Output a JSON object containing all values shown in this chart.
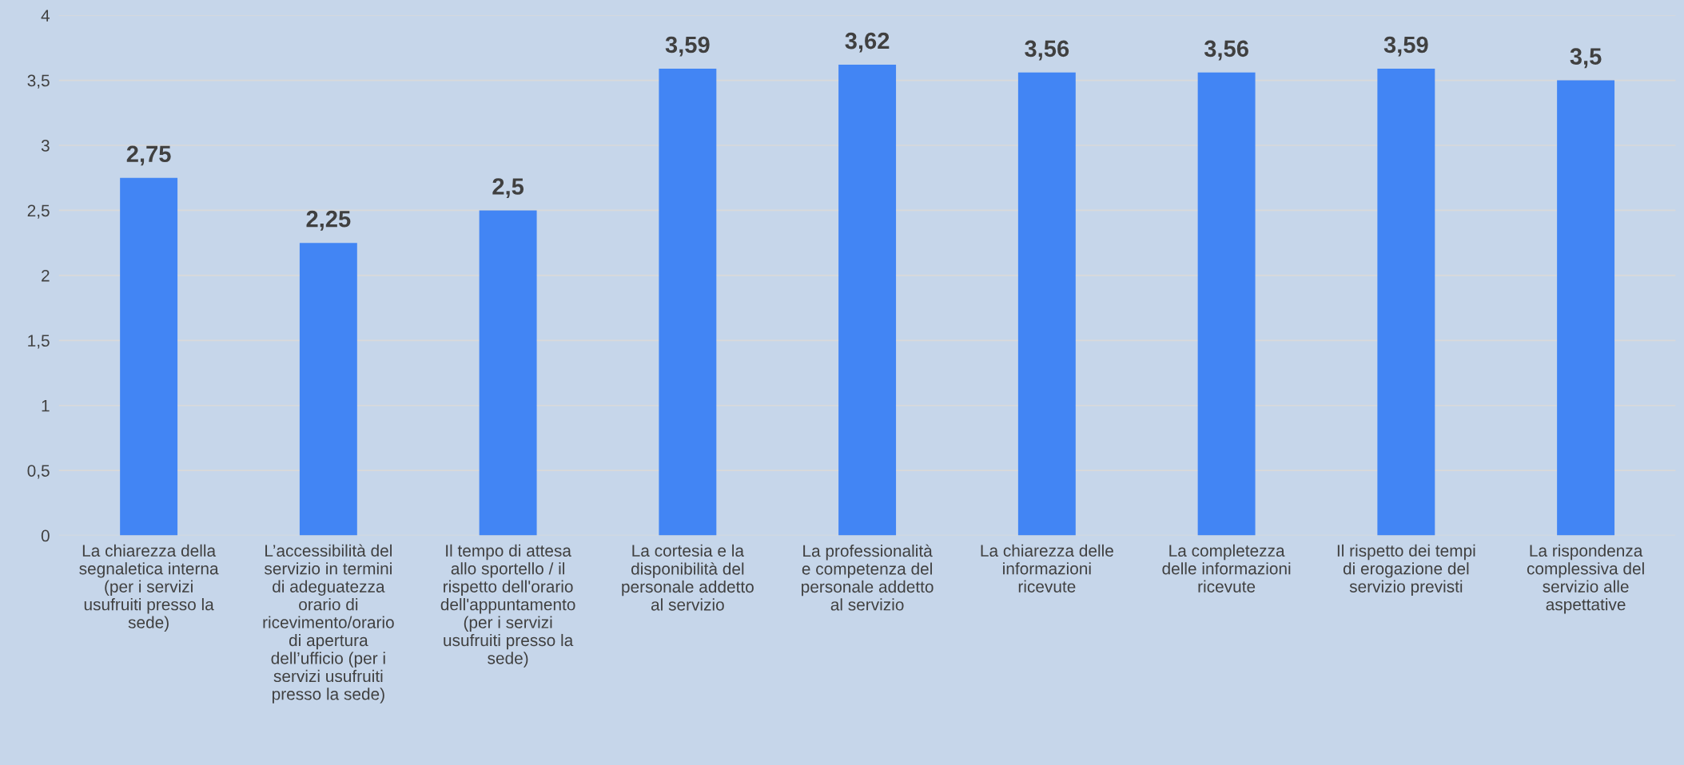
{
  "chart_data": {
    "type": "bar",
    "categories": [
      "La chiarezza della\nsegnaletica interna\n(per i servizi\nusufruiti presso la\nsede)",
      "L’accessibilità del\nservizio in termini\ndi adeguatezza\norario di\nricevimento/orario\ndi apertura\ndell’ufficio (per i\nservizi usufruiti\npresso la sede)",
      "Il tempo di attesa\nallo sportello / il\nrispetto dell'orario\ndell'appuntamento\n(per i servizi\nusufruiti presso la\nsede)",
      "La cortesia e la\ndisponibilità del\npersonale addetto\nal servizio",
      "La professionalità\ne competenza del\npersonale addetto\nal servizio",
      "La chiarezza delle\ninformazioni\nricevute",
      "La completezza\ndelle informazioni\nricevute",
      "Il rispetto dei tempi\ndi erogazione del\nservizio previsti",
      "La rispondenza\ncomplessiva del\nservizio alle\naspettative"
    ],
    "values": [
      2.75,
      2.25,
      2.5,
      3.59,
      3.62,
      3.56,
      3.56,
      3.59,
      3.5
    ],
    "value_labels": [
      "2,75",
      "2,25",
      "2,5",
      "3,59",
      "3,62",
      "3,56",
      "3,56",
      "3,59",
      "3,5"
    ],
    "color": "#4285f4",
    "ylim": [
      0,
      4
    ],
    "yticks": [
      0,
      {
        "value": 0.5,
        "label": "0,5"
      },
      1,
      {
        "value": 1.5,
        "label": "1,5"
      },
      2,
      {
        "value": 2.5,
        "label": "2,5"
      },
      3,
      {
        "value": 3.5,
        "label": "3,5"
      },
      4
    ],
    "grid": "y"
  }
}
